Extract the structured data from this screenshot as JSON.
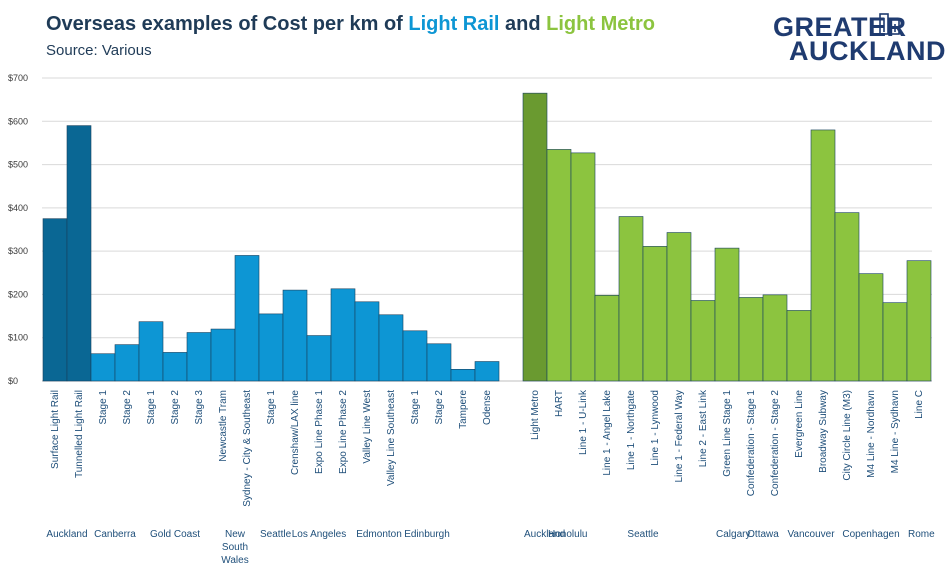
{
  "header": {
    "title_prefix": "Overseas examples of Cost per km of ",
    "title_series1": "Light Rail",
    "title_and": " and ",
    "title_series2": "Light Metro",
    "subtitle": "Source: Various"
  },
  "logo": {
    "line1": "GREATER",
    "line2": "AUCKLAND",
    "icon": "city-skyline-icon"
  },
  "colors": {
    "title": "#1f3b57",
    "light_rail": "#0d96d4",
    "light_rail_dark": "#0a6794",
    "light_metro": "#8cc43f",
    "light_metro_dark": "#6a9a30",
    "bar_edge": "#17405e",
    "grid": "#d9d9d9"
  },
  "chart_data": {
    "type": "bar",
    "title": "Overseas examples of Cost per km of Light Rail and Light Metro",
    "subtitle": "Source: Various",
    "xlabel": "",
    "ylabel": "",
    "ylim": [
      0,
      700
    ],
    "yticks": [
      "$0",
      "$100",
      "$200",
      "$300",
      "$400",
      "$500",
      "$600",
      "$700"
    ],
    "grid": true,
    "legend": "none",
    "series": [
      {
        "name": "Light Rail",
        "bars": [
          {
            "label": "Surface Light Rail",
            "group": "Auckland",
            "value": 375,
            "highlight": true
          },
          {
            "label": "Tunnelled Light Rail",
            "group": "Auckland",
            "value": 590,
            "highlight": true
          },
          {
            "label": "Stage 1",
            "group": "Canberra",
            "value": 63
          },
          {
            "label": "Stage 2",
            "group": "Canberra",
            "value": 84
          },
          {
            "label": "Stage 1",
            "group": "Gold Coast",
            "value": 137
          },
          {
            "label": "Stage 2",
            "group": "Gold Coast",
            "value": 66
          },
          {
            "label": "Stage 3",
            "group": "Gold Coast",
            "value": 112
          },
          {
            "label": "Newcastle Tram",
            "group": "New South Wales",
            "value": 120
          },
          {
            "label": "Sydney - City & Southeast",
            "group": "New South Wales",
            "value": 290
          },
          {
            "label": "Stage 1",
            "group": "Seattle",
            "value": 155
          },
          {
            "label": "Crenshaw/LAX line",
            "group": "Los Angeles",
            "value": 210
          },
          {
            "label": "Expo Line Phase 1",
            "group": "Los Angeles",
            "value": 105
          },
          {
            "label": "Expo Line Phase 2",
            "group": "Los Angeles",
            "value": 213
          },
          {
            "label": "Valley Line West",
            "group": "Edmonton",
            "value": 183
          },
          {
            "label": "Valley Line Southeast",
            "group": "Edmonton",
            "value": 153
          },
          {
            "label": "Stage 1",
            "group": "Edinburgh",
            "value": 116
          },
          {
            "label": "Stage 2",
            "group": "Edinburgh",
            "value": 86
          },
          {
            "label": "Tampere",
            "group": "",
            "value": 27
          },
          {
            "label": "Odense",
            "group": "",
            "value": 45
          }
        ]
      },
      {
        "name": "Light Metro",
        "bars": [
          {
            "label": "Light Metro",
            "group": "Auckland",
            "value": 665,
            "highlight": true
          },
          {
            "label": "HART",
            "group": "Honolulu",
            "value": 535
          },
          {
            "label": "Line 1 - U-Link",
            "group": "Seattle",
            "value": 527
          },
          {
            "label": "Line 1 - Angel Lake",
            "group": "Seattle",
            "value": 198
          },
          {
            "label": "Line 1 - Northgate",
            "group": "Seattle",
            "value": 380
          },
          {
            "label": "Line 1 - Lynwood",
            "group": "Seattle",
            "value": 311
          },
          {
            "label": "Line 1 - Federal Way",
            "group": "Seattle",
            "value": 343
          },
          {
            "label": "Line 2 - East Link",
            "group": "Seattle",
            "value": 186
          },
          {
            "label": "Green Line Stage 1",
            "group": "Calgary",
            "value": 307
          },
          {
            "label": "Confederation - Stage 1",
            "group": "Ottawa",
            "value": 193
          },
          {
            "label": "Confederation - Stage 2",
            "group": "Ottawa",
            "value": 199
          },
          {
            "label": "Evergreen Line",
            "group": "Vancouver",
            "value": 163
          },
          {
            "label": "Broadway Subway",
            "group": "Vancouver",
            "value": 580
          },
          {
            "label": "City Circle Line (M3)",
            "group": "Copenhagen",
            "value": 389
          },
          {
            "label": "M4 Line - Nordhavn",
            "group": "Copenhagen",
            "value": 248
          },
          {
            "label": "M4 Line - Sydhavn",
            "group": "Copenhagen",
            "value": 181
          },
          {
            "label": "Line C",
            "group": "Rome",
            "value": 278
          }
        ]
      }
    ],
    "group_labels": [
      "Auckland",
      "Canberra",
      "Gold Coast",
      "New South Wales",
      "Seattle",
      "Los Angeles",
      "Edmonton",
      "Edinburgh",
      "Auckland",
      "Honolulu",
      "Seattle",
      "Calgary",
      "Ottawa",
      "Vancouver",
      "Copenhagen",
      "Rome"
    ]
  }
}
